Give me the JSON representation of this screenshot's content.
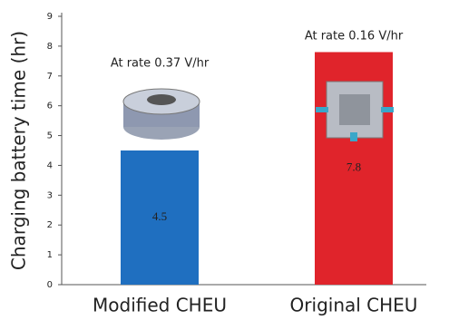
{
  "chart_data": {
    "type": "bar",
    "y_label": "Charging battery time (hr)",
    "categories": [
      "Modified CHEU",
      "Original CHEU"
    ],
    "values": [
      4.5,
      7.8
    ],
    "colors": [
      "#1f6fc0",
      "#e0242b"
    ],
    "annotations": [
      "At rate 0.37 V/hr",
      "At rate 0.16 V/hr"
    ],
    "ylim": [
      0,
      9
    ],
    "yticks": [
      0,
      1,
      2,
      3,
      4,
      5,
      6,
      7,
      8,
      9
    ]
  }
}
